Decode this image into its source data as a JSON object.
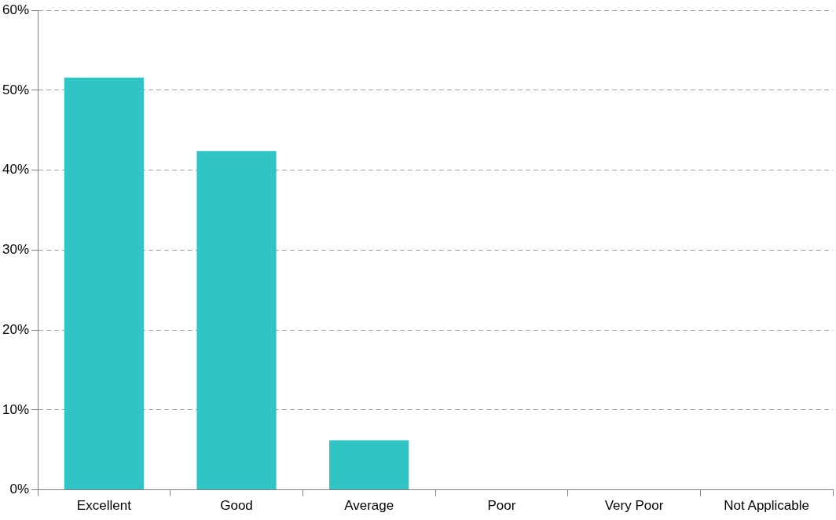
{
  "chart_data": {
    "type": "bar",
    "categories": [
      "Excellent",
      "Good",
      "Average",
      "Poor",
      "Very Poor",
      "Not Applicable"
    ],
    "values": [
      51.6,
      42.4,
      6.2,
      0,
      0,
      0
    ],
    "color": "#30c4c4",
    "ylim": [
      0,
      60
    ],
    "yticks": [
      {
        "value": 0,
        "label": "0%"
      },
      {
        "value": 10,
        "label": "10%"
      },
      {
        "value": 20,
        "label": "20%"
      },
      {
        "value": 30,
        "label": "30%"
      },
      {
        "value": 40,
        "label": "40%"
      },
      {
        "value": 50,
        "label": "50%"
      },
      {
        "value": 60,
        "label": "60%"
      }
    ],
    "grid": "y"
  }
}
